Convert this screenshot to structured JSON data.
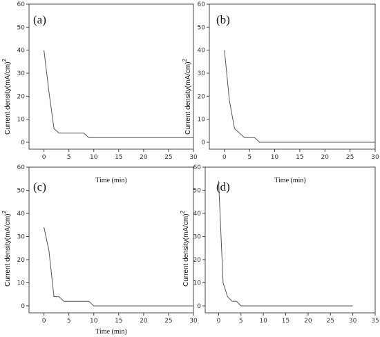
{
  "chart_data": [
    {
      "type": "line",
      "panel_label": "(a)",
      "xlabel": "Time (min)",
      "ylabel": "Current density(mA/cm)",
      "ylabel_sup": "2",
      "xlim": [
        -3,
        30
      ],
      "ylim": [
        -3,
        60
      ],
      "xticks": [
        0,
        5,
        10,
        15,
        20,
        25,
        30
      ],
      "yticks": [
        0,
        10,
        20,
        30,
        40,
        50,
        60
      ],
      "x": [
        0,
        1,
        2,
        3,
        8,
        9,
        30
      ],
      "y": [
        40,
        22,
        6,
        4,
        4,
        2,
        2
      ]
    },
    {
      "type": "line",
      "panel_label": "(b)",
      "xlabel": "",
      "ylabel": "Current density(mA/cm)",
      "ylabel_sup": "2",
      "xlim": [
        -3,
        30
      ],
      "ylim": [
        -3,
        60
      ],
      "xticks": [
        0,
        5,
        10,
        15,
        20,
        25,
        30
      ],
      "yticks": [
        0,
        10,
        20,
        30,
        40,
        50,
        60
      ],
      "x": [
        0,
        1,
        2,
        3,
        4,
        6,
        7,
        30
      ],
      "y": [
        40,
        18,
        6,
        4,
        2,
        2,
        0,
        0
      ]
    },
    {
      "type": "line",
      "panel_label": "(c)",
      "xlabel": "Time (min)",
      "ylabel": "Current density(mA/cm)",
      "ylabel_sup": "2",
      "xlim": [
        -3,
        30
      ],
      "ylim": [
        -3,
        60
      ],
      "xticks": [
        0,
        5,
        10,
        15,
        20,
        25,
        30
      ],
      "yticks": [
        0,
        10,
        20,
        30,
        40,
        50,
        60
      ],
      "x": [
        0,
        1,
        2,
        3,
        4,
        9,
        10,
        30
      ],
      "y": [
        34,
        24,
        4,
        4,
        2,
        2,
        0,
        0
      ]
    },
    {
      "type": "line",
      "panel_label": "(d)",
      "xlabel": "Time (min)",
      "ylabel": "Current density(mA/cm)",
      "ylabel_sup": "2",
      "xlim": [
        -3,
        35
      ],
      "ylim": [
        -3,
        60
      ],
      "xticks": [
        0,
        5,
        10,
        15,
        20,
        25,
        30,
        35
      ],
      "yticks": [
        0,
        10,
        20,
        30,
        40,
        50,
        60
      ],
      "x": [
        0,
        1,
        2,
        3,
        4,
        5,
        30
      ],
      "y": [
        54,
        10,
        4,
        2,
        2,
        0,
        0
      ]
    }
  ]
}
